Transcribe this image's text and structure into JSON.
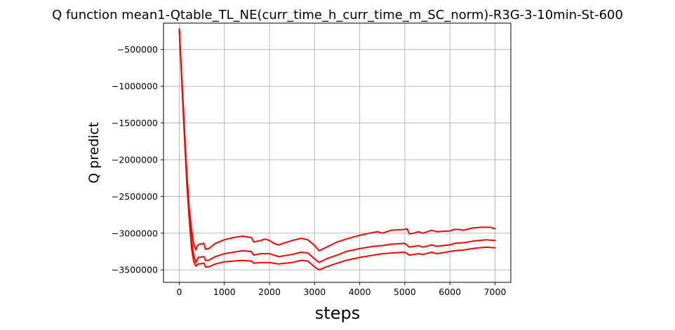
{
  "chart_data": {
    "type": "line",
    "title": "Q function mean1-Qtable_TL_NE(curr_time_h_curr_time_m_SC_norm)-R3G-3-10min-St-600",
    "xlabel": "steps",
    "ylabel": "Q predict",
    "xlim": [
      -350,
      7350
    ],
    "ylim": [
      -3670000,
      -140000
    ],
    "xticks": [
      0,
      1000,
      2000,
      3000,
      4000,
      5000,
      6000,
      7000
    ],
    "yticks": [
      -3500000,
      -3000000,
      -2500000,
      -2000000,
      -1500000,
      -1000000,
      -500000
    ],
    "grid": true,
    "line_color": "#ff0000",
    "series": [
      {
        "points": [
          [
            0,
            -220000
          ],
          [
            40,
            -700000
          ],
          [
            80,
            -1150000
          ],
          [
            120,
            -1650000
          ],
          [
            170,
            -2200000
          ],
          [
            220,
            -2650000
          ],
          [
            270,
            -2950000
          ],
          [
            320,
            -3150000
          ],
          [
            370,
            -3230000
          ],
          [
            400,
            -3170000
          ],
          [
            450,
            -3150000
          ],
          [
            550,
            -3140000
          ],
          [
            580,
            -3220000
          ],
          [
            650,
            -3210000
          ],
          [
            800,
            -3140000
          ],
          [
            1000,
            -3090000
          ],
          [
            1200,
            -3060000
          ],
          [
            1400,
            -3040000
          ],
          [
            1500,
            -3050000
          ],
          [
            1600,
            -3060000
          ],
          [
            1650,
            -3120000
          ],
          [
            1800,
            -3100000
          ],
          [
            1900,
            -3080000
          ],
          [
            2000,
            -3100000
          ],
          [
            2100,
            -3140000
          ],
          [
            2200,
            -3160000
          ],
          [
            2300,
            -3140000
          ],
          [
            2500,
            -3100000
          ],
          [
            2700,
            -3070000
          ],
          [
            2850,
            -3090000
          ],
          [
            3000,
            -3170000
          ],
          [
            3100,
            -3240000
          ],
          [
            3300,
            -3180000
          ],
          [
            3500,
            -3120000
          ],
          [
            3700,
            -3080000
          ],
          [
            4000,
            -3030000
          ],
          [
            4300,
            -2990000
          ],
          [
            4400,
            -2980000
          ],
          [
            4500,
            -3000000
          ],
          [
            4700,
            -2960000
          ],
          [
            5000,
            -2950000
          ],
          [
            5050,
            -2940000
          ],
          [
            5100,
            -3010000
          ],
          [
            5200,
            -3000000
          ],
          [
            5300,
            -2980000
          ],
          [
            5400,
            -3000000
          ],
          [
            5600,
            -2960000
          ],
          [
            5700,
            -2980000
          ],
          [
            6000,
            -2970000
          ],
          [
            6100,
            -2950000
          ],
          [
            6200,
            -2950000
          ],
          [
            6300,
            -2960000
          ],
          [
            6500,
            -2930000
          ],
          [
            6700,
            -2920000
          ],
          [
            6900,
            -2920000
          ],
          [
            7000,
            -2940000
          ]
        ]
      },
      {
        "points": [
          [
            0,
            -220000
          ],
          [
            40,
            -720000
          ],
          [
            80,
            -1200000
          ],
          [
            120,
            -1700000
          ],
          [
            170,
            -2300000
          ],
          [
            220,
            -2750000
          ],
          [
            270,
            -3100000
          ],
          [
            320,
            -3300000
          ],
          [
            370,
            -3400000
          ],
          [
            420,
            -3330000
          ],
          [
            550,
            -3320000
          ],
          [
            580,
            -3370000
          ],
          [
            650,
            -3370000
          ],
          [
            800,
            -3320000
          ],
          [
            1000,
            -3280000
          ],
          [
            1200,
            -3260000
          ],
          [
            1400,
            -3240000
          ],
          [
            1600,
            -3250000
          ],
          [
            1650,
            -3300000
          ],
          [
            1800,
            -3280000
          ],
          [
            2000,
            -3280000
          ],
          [
            2100,
            -3300000
          ],
          [
            2200,
            -3320000
          ],
          [
            2500,
            -3290000
          ],
          [
            2700,
            -3260000
          ],
          [
            2850,
            -3270000
          ],
          [
            3000,
            -3350000
          ],
          [
            3100,
            -3400000
          ],
          [
            3300,
            -3340000
          ],
          [
            3500,
            -3300000
          ],
          [
            3700,
            -3250000
          ],
          [
            4000,
            -3210000
          ],
          [
            4300,
            -3180000
          ],
          [
            4500,
            -3170000
          ],
          [
            4700,
            -3150000
          ],
          [
            5000,
            -3140000
          ],
          [
            5100,
            -3190000
          ],
          [
            5300,
            -3170000
          ],
          [
            5400,
            -3190000
          ],
          [
            5600,
            -3160000
          ],
          [
            5700,
            -3180000
          ],
          [
            6000,
            -3160000
          ],
          [
            6100,
            -3140000
          ],
          [
            6300,
            -3130000
          ],
          [
            6500,
            -3110000
          ],
          [
            6800,
            -3090000
          ],
          [
            7000,
            -3100000
          ]
        ]
      },
      {
        "points": [
          [
            0,
            -220000
          ],
          [
            40,
            -740000
          ],
          [
            80,
            -1250000
          ],
          [
            120,
            -1750000
          ],
          [
            170,
            -2350000
          ],
          [
            220,
            -2800000
          ],
          [
            270,
            -3200000
          ],
          [
            320,
            -3390000
          ],
          [
            370,
            -3450000
          ],
          [
            420,
            -3420000
          ],
          [
            550,
            -3410000
          ],
          [
            580,
            -3460000
          ],
          [
            650,
            -3460000
          ],
          [
            800,
            -3420000
          ],
          [
            1000,
            -3390000
          ],
          [
            1200,
            -3380000
          ],
          [
            1400,
            -3370000
          ],
          [
            1600,
            -3380000
          ],
          [
            1650,
            -3410000
          ],
          [
            1800,
            -3400000
          ],
          [
            2000,
            -3400000
          ],
          [
            2100,
            -3410000
          ],
          [
            2200,
            -3420000
          ],
          [
            2500,
            -3400000
          ],
          [
            2700,
            -3370000
          ],
          [
            2850,
            -3380000
          ],
          [
            3000,
            -3460000
          ],
          [
            3100,
            -3500000
          ],
          [
            3300,
            -3450000
          ],
          [
            3500,
            -3410000
          ],
          [
            3700,
            -3370000
          ],
          [
            4000,
            -3330000
          ],
          [
            4300,
            -3300000
          ],
          [
            4500,
            -3280000
          ],
          [
            4700,
            -3270000
          ],
          [
            5000,
            -3260000
          ],
          [
            5100,
            -3300000
          ],
          [
            5300,
            -3280000
          ],
          [
            5400,
            -3290000
          ],
          [
            5600,
            -3260000
          ],
          [
            5700,
            -3280000
          ],
          [
            6000,
            -3250000
          ],
          [
            6100,
            -3240000
          ],
          [
            6300,
            -3230000
          ],
          [
            6500,
            -3210000
          ],
          [
            6800,
            -3190000
          ],
          [
            7000,
            -3200000
          ]
        ]
      }
    ]
  }
}
